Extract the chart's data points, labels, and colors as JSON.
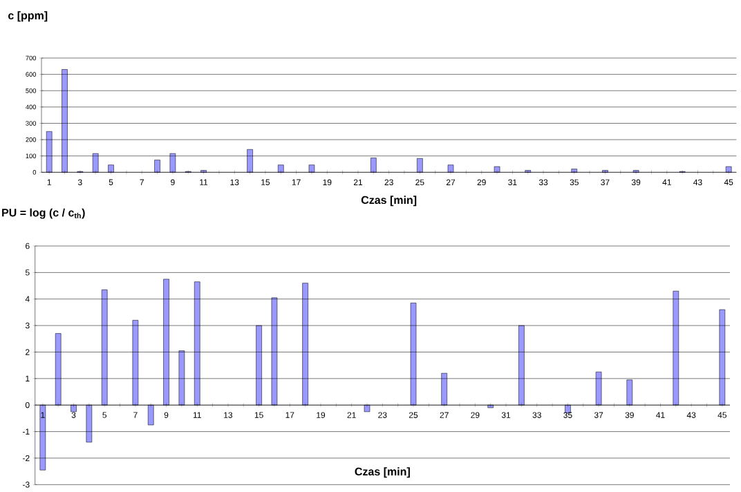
{
  "chart_data": [
    {
      "type": "bar",
      "ylabel": "c [ppm]",
      "xlabel": "Czas [min]",
      "color": "#9999ff",
      "grid": "y",
      "ylim": [
        0,
        700
      ],
      "yticks": [
        0,
        100,
        200,
        300,
        400,
        500,
        600,
        700
      ],
      "categories": [
        "1",
        null,
        "3",
        null,
        "5",
        null,
        "7",
        null,
        "9",
        null,
        "11",
        null,
        "13",
        null,
        "15",
        null,
        "17",
        null,
        "19",
        null,
        "21",
        null,
        "23",
        null,
        "25",
        null,
        "27",
        null,
        "29",
        null,
        "31",
        null,
        "33",
        null,
        "35",
        null,
        "37",
        null,
        "39",
        null,
        "41",
        null,
        "43",
        null,
        "45"
      ],
      "values": [
        250,
        630,
        5,
        115,
        45,
        null,
        null,
        75,
        115,
        5,
        12,
        null,
        null,
        140,
        null,
        45,
        null,
        45,
        null,
        null,
        null,
        88,
        null,
        null,
        85,
        null,
        45,
        null,
        null,
        35,
        null,
        12,
        null,
        null,
        20,
        null,
        12,
        null,
        12,
        null,
        null,
        5,
        null,
        null,
        35
      ]
    },
    {
      "type": "bar",
      "ylabel": "PU = log (c / c$_{th}$)",
      "xlabel": "Czas [min]",
      "color": "#9999ff",
      "grid": "y",
      "ylim": [
        -3,
        6
      ],
      "yticks": [
        -3,
        -2,
        -1,
        0,
        1,
        2,
        3,
        4,
        5,
        6
      ],
      "categories": [
        "1",
        null,
        "3",
        null,
        "5",
        null,
        "7",
        null,
        "9",
        null,
        "11",
        null,
        "13",
        null,
        "15",
        null,
        "17",
        null,
        "19",
        null,
        "21",
        null,
        "23",
        null,
        "25",
        null,
        "27",
        null,
        "29",
        null,
        "31",
        null,
        "33",
        null,
        "35",
        null,
        "37",
        null,
        "39",
        null,
        "41",
        null,
        "43",
        null,
        "45"
      ],
      "values": [
        -2.45,
        2.7,
        -0.25,
        -1.4,
        4.35,
        null,
        3.2,
        -0.75,
        4.75,
        2.05,
        4.65,
        null,
        null,
        null,
        3.0,
        4.05,
        null,
        4.6,
        null,
        null,
        null,
        -0.25,
        null,
        null,
        3.85,
        null,
        1.2,
        null,
        null,
        -0.1,
        null,
        3.0,
        null,
        null,
        -0.3,
        null,
        1.25,
        null,
        0.95,
        null,
        null,
        4.3,
        null,
        null,
        3.6
      ]
    }
  ]
}
